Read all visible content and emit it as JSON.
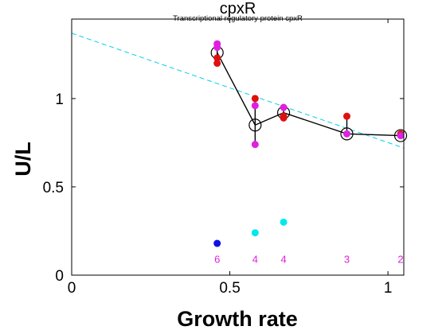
{
  "colors": {
    "background": "#ffffff",
    "trend_line": "#00d0e6",
    "mean_line": "#000000",
    "replicate_red": "#e01010",
    "replicate_magenta": "#e020e0",
    "marker_cyan": "#00e8f0",
    "marker_blue": "#1010e6",
    "count_text": "#e020e0"
  },
  "chart_data": {
    "type": "scatter",
    "title": "cpxR",
    "subtitle": "Transcriptional regulatory protein cpxR",
    "xlabel": "Growth rate",
    "ylabel": "U/L",
    "xlim": [
      0,
      1.05
    ],
    "ylim": [
      0,
      1.45
    ],
    "x_ticks": [
      0,
      0.5,
      1
    ],
    "x_tick_labels": [
      "0",
      "0.5",
      "1"
    ],
    "y_ticks": [
      0,
      0.5,
      1
    ],
    "y_tick_labels": [
      "0",
      "0.5",
      "1"
    ],
    "grid": false,
    "legend": "none",
    "series": [
      {
        "kind": "mean_line",
        "color": "#000000",
        "x": [
          0.46,
          0.58,
          0.67,
          0.87,
          1.04
        ],
        "y": [
          1.26,
          0.85,
          0.92,
          0.8,
          0.79
        ]
      },
      {
        "kind": "replicates_red",
        "color": "#e01010",
        "x": [
          0.46,
          0.46,
          0.58,
          0.67,
          0.67,
          0.87,
          1.04
        ],
        "y": [
          1.2,
          1.23,
          1.0,
          0.89,
          0.9,
          0.9,
          0.8
        ]
      },
      {
        "kind": "replicates_magenta",
        "color": "#e020e0",
        "x": [
          0.46,
          0.46,
          0.58,
          0.58,
          0.67,
          0.87,
          1.04
        ],
        "y": [
          1.31,
          1.29,
          0.96,
          0.74,
          0.95,
          0.8,
          0.79
        ]
      },
      {
        "kind": "low_cyan",
        "color": "#00e8f0",
        "x": [
          0.58,
          0.67
        ],
        "y": [
          0.24,
          0.3
        ]
      },
      {
        "kind": "low_blue",
        "color": "#1010e6",
        "x": [
          0.46
        ],
        "y": [
          0.18
        ]
      }
    ],
    "trend_line": {
      "color": "#00d0e6",
      "style": "dashed",
      "x": [
        0,
        1.05
      ],
      "y": [
        1.37,
        0.72
      ]
    },
    "counts": [
      {
        "x": 0.46,
        "label": "6"
      },
      {
        "x": 0.58,
        "label": "4"
      },
      {
        "x": 0.67,
        "label": "4"
      },
      {
        "x": 0.87,
        "label": "3"
      },
      {
        "x": 1.04,
        "label": "2"
      }
    ]
  }
}
